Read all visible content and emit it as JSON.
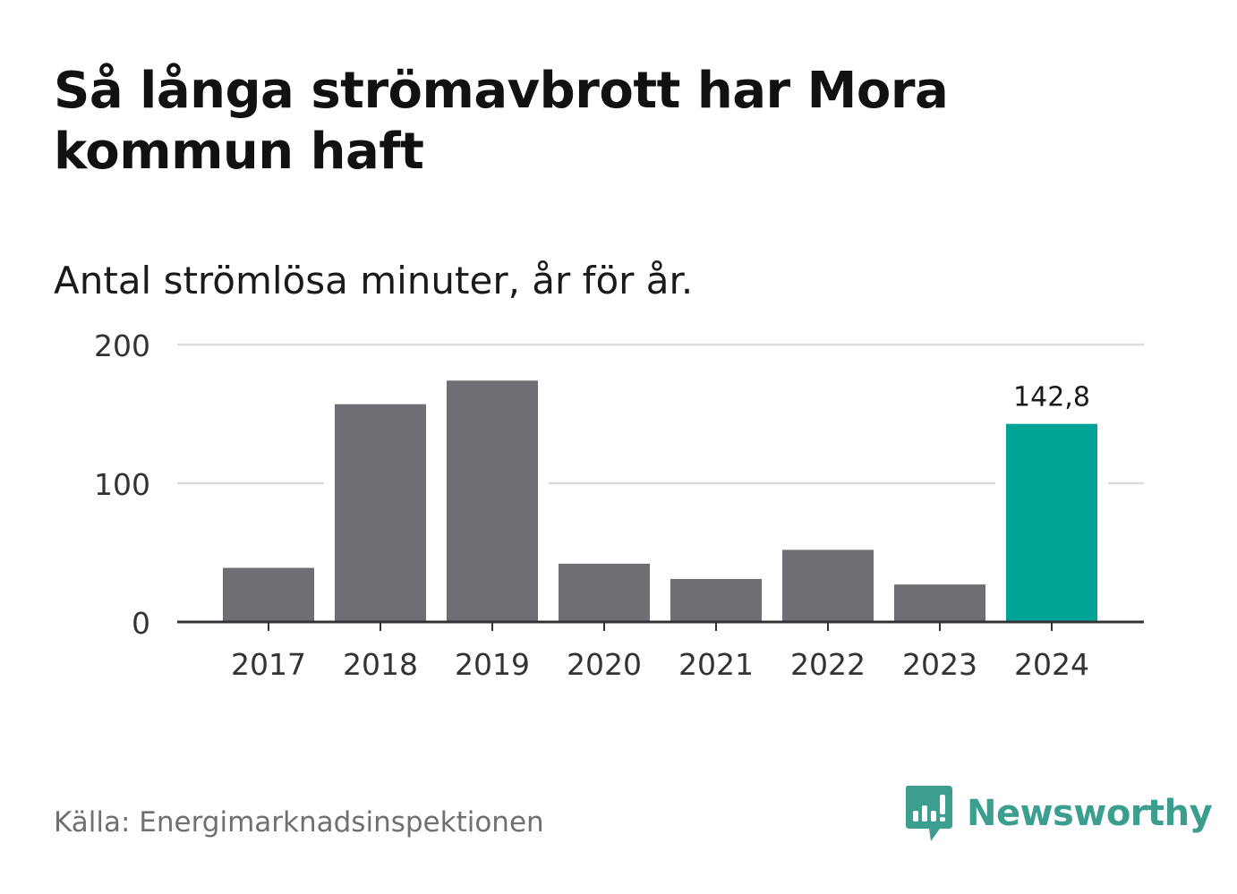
{
  "title": "Så långa strömavbrott har Mora kommun haft",
  "subtitle": "Antal strömlösa minuter, år för år.",
  "source": "Källa: Energimarknadsinspektionen",
  "brand": {
    "name": "Newsworthy",
    "icon": "newsworthy-logo-icon",
    "color": "#3c9e8f"
  },
  "colors": {
    "bar": "#6f6e74",
    "highlight": "#00a497",
    "grid": "#dcdcdc",
    "axis": "#333333",
    "text": "#333333"
  },
  "chart_data": {
    "type": "bar",
    "categories": [
      "2017",
      "2018",
      "2019",
      "2020",
      "2021",
      "2022",
      "2023",
      "2024"
    ],
    "values": [
      39,
      157,
      174,
      42,
      31,
      52,
      27,
      142.8
    ],
    "highlight_index": 7,
    "highlight_label": "142,8",
    "ylim": [
      0,
      200
    ],
    "yticks": [
      0,
      100,
      200
    ],
    "ytick_labels": [
      "0",
      "100",
      "200"
    ],
    "xlabel": "",
    "ylabel": "",
    "grid": true
  }
}
